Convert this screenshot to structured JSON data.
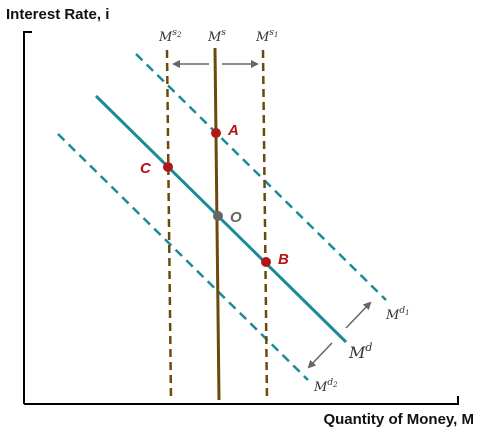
{
  "axes": {
    "y_title": "Interest Rate, i",
    "x_title": "Quantity of Money, M"
  },
  "supply_labels": {
    "s2": {
      "base": "M",
      "sup": "s",
      "sub": "2"
    },
    "s": {
      "base": "M",
      "sup": "s"
    },
    "s1": {
      "base": "M",
      "sup": "s",
      "sub": "1"
    }
  },
  "demand_labels": {
    "d1": {
      "base": "M",
      "sup": "d",
      "sub": "1"
    },
    "d": {
      "base": "M",
      "sup": "d"
    },
    "d2": {
      "base": "M",
      "sup": "d",
      "sub": "2"
    }
  },
  "points": {
    "A": "A",
    "B": "B",
    "C": "C",
    "O": "O"
  },
  "colors": {
    "supply": "#6b4a0c",
    "demand": "#1a8a99",
    "equilibrium": "#b01818",
    "origin_point": "#666666",
    "arrow": "#666666",
    "axis": "#000000"
  }
}
